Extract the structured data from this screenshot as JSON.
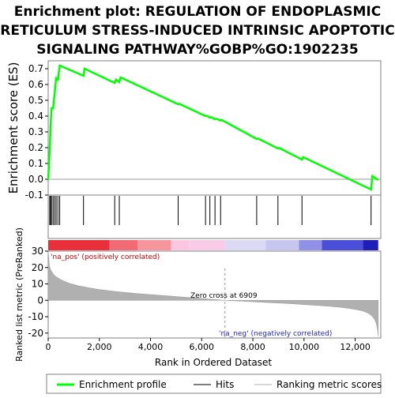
{
  "chart_data": {
    "type": "line",
    "title_lines": [
      "Enrichment plot: REGULATION OF ENDOPLASMIC",
      "RETICULUM STRESS-INDUCED INTRINSIC APOPTOTIC",
      "SIGNALING PATHWAY%GOBP%GO:1902235"
    ],
    "es_panel": {
      "ylabel": "Enrichment score (ES)",
      "ylim": [
        -0.1,
        0.75
      ],
      "yticks": [
        "-0.1",
        "0.0",
        "0.1",
        "0.2",
        "0.3",
        "0.4",
        "0.5",
        "0.6",
        "0.7"
      ],
      "series": [
        {
          "name": "Enrichment profile",
          "color": "#00ff00",
          "x": [
            0,
            60,
            90,
            130,
            190,
            250,
            310,
            380,
            450,
            1380,
            1420,
            2600,
            2650,
            2780,
            2830,
            5080,
            5120,
            6150,
            6200,
            6320,
            6370,
            6520,
            6570,
            6740,
            6790,
            8150,
            8200,
            8980,
            9030,
            9920,
            9970,
            12620,
            12670,
            12900
          ],
          "y": [
            0.0,
            0.18,
            0.32,
            0.45,
            0.45,
            0.54,
            0.64,
            0.63,
            0.72,
            0.655,
            0.7,
            0.61,
            0.63,
            0.615,
            0.645,
            0.475,
            0.478,
            0.4,
            0.402,
            0.39,
            0.393,
            0.38,
            0.383,
            0.372,
            0.375,
            0.255,
            0.258,
            0.195,
            0.198,
            0.125,
            0.14,
            -0.065,
            0.02,
            -0.005
          ]
        }
      ]
    },
    "hits": [
      60,
      90,
      130,
      190,
      250,
      310,
      380,
      450,
      1380,
      2600,
      2780,
      5080,
      6150,
      6320,
      6520,
      6740,
      8150,
      8980,
      9920,
      12620
    ],
    "metric_panel": {
      "ylabel": "Ranked list metric (PreRanked)",
      "ylim": [
        -23,
        30
      ],
      "yticks": [
        "-20",
        "-10",
        "0",
        "10",
        "20",
        "30"
      ],
      "xlabel": "Rank in Ordered Dataset",
      "xlim": [
        0,
        13000
      ],
      "xticks": [
        "0",
        "2,000",
        "4,000",
        "6,000",
        "8,000",
        "10,000",
        "12,000"
      ],
      "profile_x": [
        0,
        50,
        100,
        200,
        300,
        500,
        800,
        1200,
        1600,
        2000,
        2500,
        3000,
        3500,
        4000,
        4500,
        5000,
        5500,
        6000,
        6500,
        6909,
        7500,
        8000,
        8500,
        9000,
        9500,
        10000,
        10500,
        11000,
        11500,
        12000,
        12300,
        12500,
        12650,
        12750,
        12820,
        12870,
        12900
      ],
      "profile_y": [
        30,
        21,
        18.5,
        16,
        14.5,
        12.5,
        10.5,
        8.8,
        7.6,
        6.6,
        5.6,
        4.8,
        4.1,
        3.5,
        2.9,
        2.3,
        1.7,
        1.1,
        0.5,
        0.0,
        -0.5,
        -0.9,
        -1.3,
        -1.7,
        -2.1,
        -2.6,
        -3.1,
        -3.7,
        -4.4,
        -5.5,
        -6.5,
        -7.8,
        -9.5,
        -11.5,
        -14,
        -17.5,
        -22
      ],
      "zero_cross_label": "Zero cross at 6909",
      "pos_label": "'na_pos' (positively correlated)",
      "neg_label": "'na_neg' (negatively correlated)"
    },
    "color_bar": [
      {
        "from": 0,
        "to": 2400,
        "color": "#e8303a"
      },
      {
        "from": 2400,
        "to": 3500,
        "color": "#f26a74"
      },
      {
        "from": 3500,
        "to": 4800,
        "color": "#f7959d"
      },
      {
        "from": 4800,
        "to": 5500,
        "color": "#fbc6df"
      },
      {
        "from": 5500,
        "to": 6909,
        "color": "#f9cbe6"
      },
      {
        "from": 6909,
        "to": 8500,
        "color": "#dcd9f5"
      },
      {
        "from": 8500,
        "to": 9800,
        "color": "#c7c6f0"
      },
      {
        "from": 9800,
        "to": 10700,
        "color": "#8f90e6"
      },
      {
        "from": 10700,
        "to": 12300,
        "color": "#4b4fd8"
      },
      {
        "from": 12300,
        "to": 12900,
        "color": "#1f1fb8"
      }
    ],
    "legend": [
      {
        "label": "Enrichment profile",
        "color": "#00ff00"
      },
      {
        "label": "Hits",
        "color": "#555555"
      },
      {
        "label": "Ranking metric scores",
        "color": "#cccccc"
      }
    ]
  }
}
